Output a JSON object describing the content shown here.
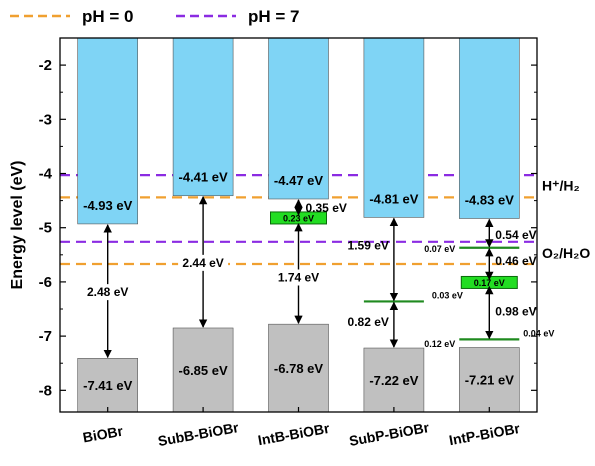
{
  "chart_data": {
    "type": "bar",
    "ylabel": "Energy level (eV)",
    "ylim": [
      -8.4,
      -1.5
    ],
    "yticks": [
      -2,
      -3,
      -4,
      -5,
      -6,
      -7,
      -8
    ],
    "categories": [
      "BiOBr",
      "SubB-BiOBr",
      "IntB-BiOBr",
      "SubP-BiOBr",
      "IntP-BiOBr"
    ],
    "legend": {
      "placement": "top",
      "items": [
        {
          "label": "pH = 0",
          "color": "#F0A030",
          "style": "dashed"
        },
        {
          "label": "pH = 7",
          "color": "#8B2BE2",
          "style": "dashed"
        }
      ]
    },
    "reference_lines": [
      {
        "series": "pH = 7",
        "label": "H⁺/H₂",
        "y": -4.03,
        "color": "#8B2BE2"
      },
      {
        "series": "pH = 0",
        "label": "",
        "y": -4.44,
        "color": "#F0A030"
      },
      {
        "series": "pH = 7",
        "label": "O₂/H₂O",
        "y": -5.26,
        "color": "#8B2BE2"
      },
      {
        "series": "pH = 0",
        "label": "",
        "y": -5.67,
        "color": "#F0A030"
      }
    ],
    "side_labels": [
      {
        "text": "H⁺/H₂",
        "y": -4.22
      },
      {
        "text": "O₂/H₂O",
        "y": -5.47
      }
    ],
    "conduction_band": {
      "color": "#7FD4F5",
      "values": [
        -4.93,
        -4.41,
        -4.47,
        -4.81,
        -4.83
      ],
      "labels": [
        "-4.93 eV",
        "-4.41 eV",
        "-4.47 eV",
        "-4.81 eV",
        "-4.83 eV"
      ]
    },
    "valence_band": {
      "color": "#C0C0C0",
      "values": [
        -7.41,
        -6.85,
        -6.78,
        -7.22,
        -7.21
      ],
      "labels": [
        "-7.41 eV",
        "-6.85 eV",
        "-6.78 eV",
        "-7.22 eV",
        "-7.21 eV"
      ]
    },
    "defect_levels": [
      {
        "category": 2,
        "y": -4.82,
        "text": "0.23 eV",
        "style": "box"
      },
      {
        "category": 3,
        "y": -6.36,
        "text": "0.03 eV",
        "style": "line"
      },
      {
        "category": 4,
        "y": -5.37,
        "text": "0.07 eV",
        "style": "line"
      },
      {
        "category": 4,
        "y": -6.01,
        "text": "0.17 eV",
        "style": "box"
      },
      {
        "category": 4,
        "y": -7.06,
        "text": "0.04 eV",
        "style": "line"
      }
    ],
    "gap_arrows": [
      {
        "category": 0,
        "y1": -4.93,
        "y2": -7.41,
        "text": "2.48 eV"
      },
      {
        "category": 1,
        "y1": -4.41,
        "y2": -6.85,
        "text": "2.44 eV"
      },
      {
        "category": 2,
        "y1": -4.47,
        "y2": -4.78,
        "text": "0.35 eV"
      },
      {
        "category": 2,
        "y1": -4.91,
        "y2": -6.78,
        "text": "1.74 eV"
      },
      {
        "category": 3,
        "y1": -4.81,
        "y2": -6.36,
        "text": "1.59 eV"
      },
      {
        "category": 3,
        "y1": -6.36,
        "y2": -7.22,
        "text": "0.82 eV"
      },
      {
        "category": 4,
        "y1": -4.83,
        "y2": -5.37,
        "text": "0.54 eV"
      },
      {
        "category": 4,
        "y1": -5.37,
        "y2": -5.97,
        "text": "0.46 eV"
      },
      {
        "category": 4,
        "y1": -6.07,
        "y2": -7.06,
        "text": "0.98 eV"
      }
    ],
    "extra_labels": [
      {
        "category": 4,
        "y": -7.15,
        "text": "0.12 eV"
      }
    ]
  }
}
